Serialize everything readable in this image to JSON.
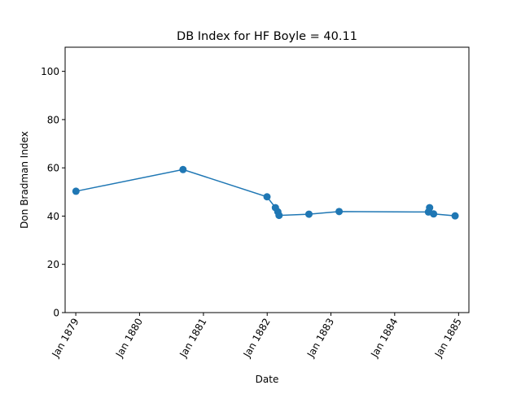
{
  "chart_data": {
    "type": "line",
    "title": "DB Index for HF Boyle = 40.11",
    "xlabel": "Date",
    "ylabel": "Don Bradman Index",
    "x_ticks": [
      "Jan 1879",
      "Jan 1880",
      "Jan 1881",
      "Jan 1882",
      "Jan 1883",
      "Jan 1884",
      "Jan 1885"
    ],
    "y_ticks": [
      0,
      20,
      40,
      60,
      80,
      100
    ],
    "ylim": [
      0,
      110
    ],
    "xlim": [
      "1878-11-01",
      "1885-03-01"
    ],
    "grid": false,
    "series": [
      {
        "color": "#1f77b4",
        "points": [
          {
            "x": "1879-01-02",
            "y": 50.3
          },
          {
            "x": "1880-09-06",
            "y": 59.3
          },
          {
            "x": "1881-12-31",
            "y": 48.0
          },
          {
            "x": "1882-02-17",
            "y": 43.5
          },
          {
            "x": "1882-03-03",
            "y": 41.8
          },
          {
            "x": "1882-03-10",
            "y": 40.3
          },
          {
            "x": "1882-08-28",
            "y": 40.8
          },
          {
            "x": "1883-02-17",
            "y": 41.9
          },
          {
            "x": "1884-07-12",
            "y": 41.7
          },
          {
            "x": "1884-07-19",
            "y": 43.5
          },
          {
            "x": "1884-08-11",
            "y": 40.9
          },
          {
            "x": "1884-12-12",
            "y": 40.1
          }
        ]
      }
    ]
  }
}
